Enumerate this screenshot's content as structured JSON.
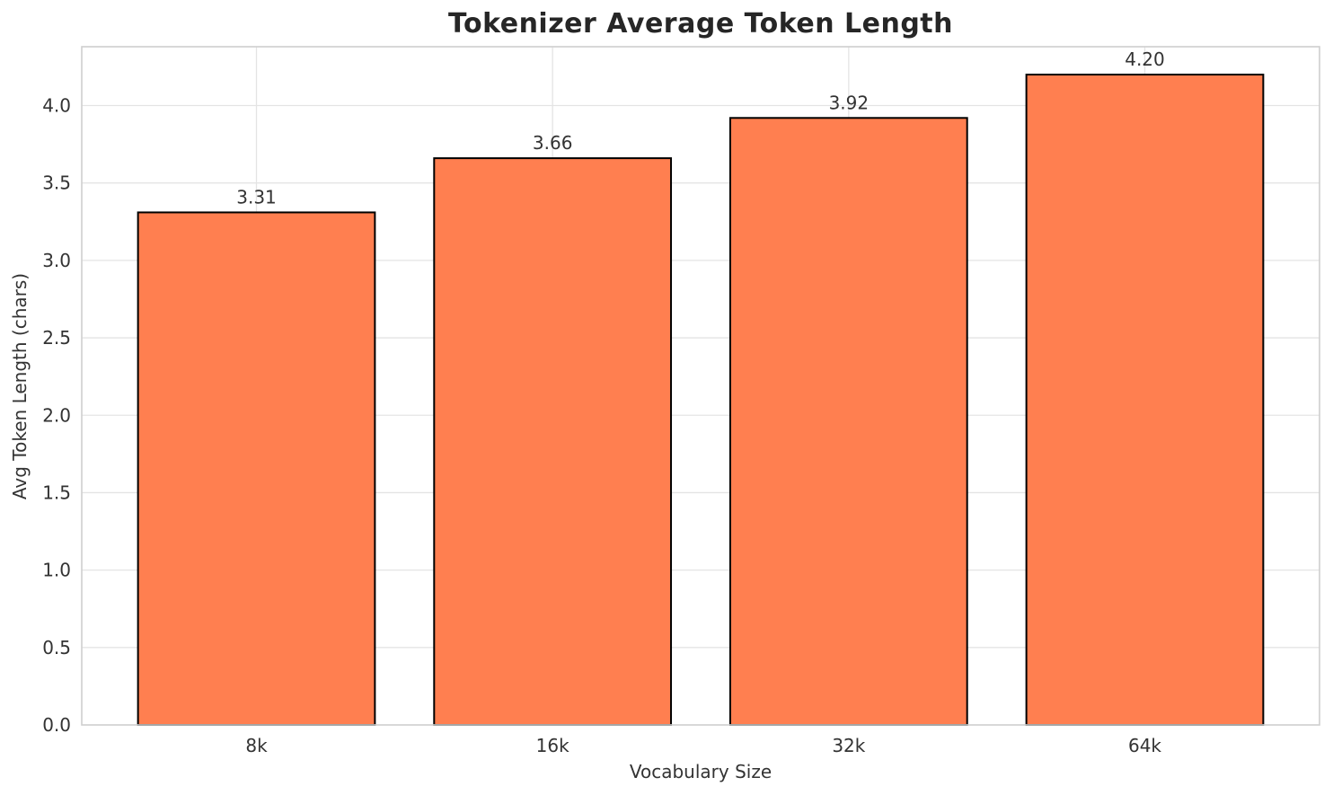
{
  "chart_data": {
    "type": "bar",
    "title": "Tokenizer Average Token Length",
    "xlabel": "Vocabulary Size",
    "ylabel": "Avg Token Length (chars)",
    "categories": [
      "8k",
      "16k",
      "32k",
      "64k"
    ],
    "values": [
      3.31,
      3.66,
      3.92,
      4.2
    ],
    "value_labels": [
      "3.31",
      "3.66",
      "3.92",
      "4.20"
    ],
    "ylim": [
      0,
      4.38
    ],
    "yticks": [
      0,
      0.5,
      1,
      1.5,
      2,
      2.5,
      3,
      3.5,
      4
    ],
    "ytick_labels": [
      "0.0",
      "0.5",
      "1.0",
      "1.5",
      "2.0",
      "2.5",
      "3.0",
      "3.5",
      "4.0"
    ],
    "grid": true,
    "legend_position": "none",
    "colors": {
      "bar_fill": "#FF7F50",
      "bar_edge": "#000000",
      "grid_line": "#e4e4e4",
      "spine": "#cfcfcf",
      "tick_text": "#333333",
      "title_text": "#262626",
      "background": "#ffffff"
    }
  }
}
